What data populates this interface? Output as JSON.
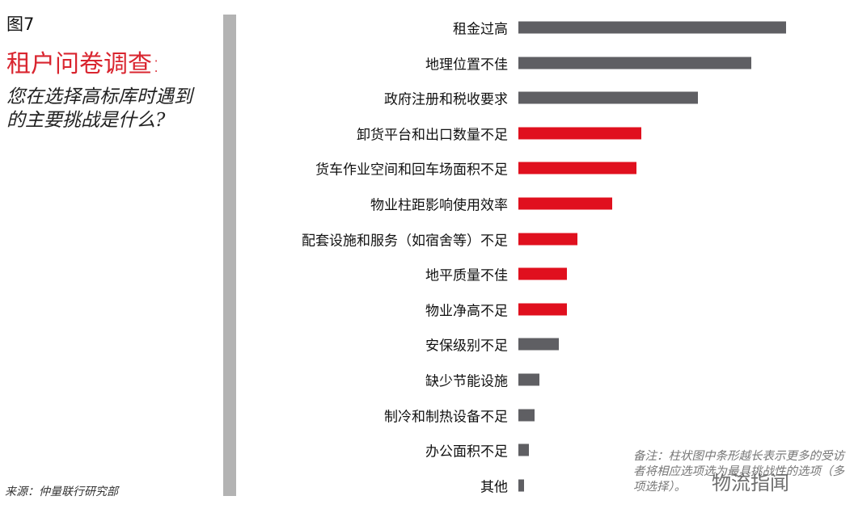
{
  "figure_label": "图7",
  "title": "租户问卷调查:",
  "question": "您在选择高标库时遇到的主要挑战是什么?",
  "source": "来源：仲量联行研究部",
  "note": "备注：柱状图中条形越长表示更多的受访者将相应选项选为最具挑战性的选项（多项选择）。",
  "watermark": "物流指闻",
  "colors": {
    "gray_bar": "#5f5f63",
    "red_bar": "#e0101e",
    "title": "#d9252f"
  },
  "chart_data": {
    "type": "bar",
    "orientation": "horizontal",
    "value_axis": "none (relative lengths, largest = 100)",
    "categories": [
      "租金过高",
      "地理位置不佳",
      "政府注册和税收要求",
      "卸货平台和出口数量不足",
      "货车作业空间和回车场面积不足",
      "物业柱距影响使用效率",
      "配套设施和服务（如宿舍等）不足",
      "地平质量不佳",
      "物业净高不足",
      "安保级别不足",
      "缺少节能设施",
      "制冷和制热设备不足",
      "办公面积不足",
      "其他"
    ],
    "values": [
      100,
      87,
      67,
      46,
      44,
      35,
      22,
      18,
      18,
      15,
      8,
      6,
      4,
      2
    ],
    "highlight": [
      false,
      false,
      false,
      true,
      true,
      true,
      true,
      true,
      true,
      false,
      false,
      false,
      false,
      false
    ],
    "grid": false
  }
}
